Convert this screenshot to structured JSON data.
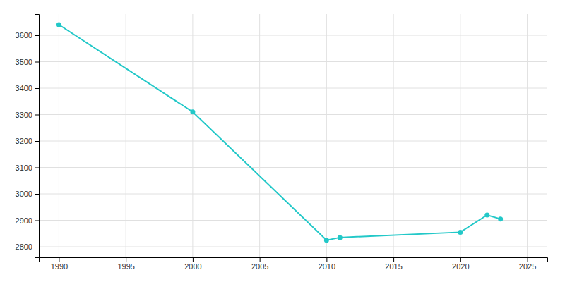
{
  "chart_data": {
    "type": "line",
    "x": [
      1990,
      2000,
      2010,
      2011,
      2020,
      2022,
      2023
    ],
    "values": [
      3640,
      3310,
      2825,
      2835,
      2855,
      2920,
      2905
    ],
    "color": "#22C8C8",
    "marker": "circle",
    "xlim": [
      1988.5,
      2026.5
    ],
    "ylim": [
      2760,
      3680
    ],
    "xticks": [
      1990,
      1995,
      2000,
      2005,
      2010,
      2015,
      2020,
      2025
    ],
    "yticks": [
      2800,
      2900,
      3000,
      3100,
      3200,
      3300,
      3400,
      3500,
      3600
    ],
    "grid": true
  }
}
